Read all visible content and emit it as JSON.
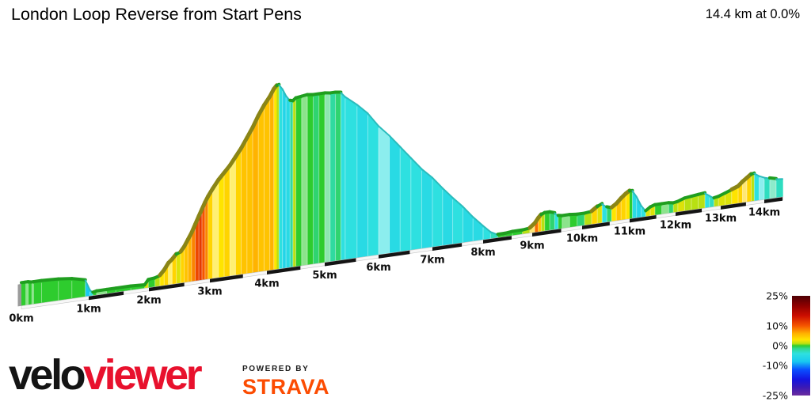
{
  "header": {
    "title": "London Loop Reverse from Start Pens",
    "summary": "14.4 km at 0.0%"
  },
  "footer": {
    "brand_velo": "velo",
    "brand_viewer": "viewer",
    "brand_viewer_color": "#e8112d",
    "powered_by": "POWERED BY",
    "strava": "STRAVA",
    "strava_color": "#fc4c02"
  },
  "chart_data": {
    "type": "area",
    "title": "London Loop Reverse from Start Pens",
    "total_distance_km": 14.4,
    "avg_gradient_pct": 0.0,
    "x_unit": "km",
    "x_ticks": [
      {
        "km": 0,
        "label": "0km"
      },
      {
        "km": 1,
        "label": "1km"
      },
      {
        "km": 2,
        "label": "2km"
      },
      {
        "km": 3,
        "label": "3km"
      },
      {
        "km": 4,
        "label": "4km"
      },
      {
        "km": 5,
        "label": "5km"
      },
      {
        "km": 6,
        "label": "6km"
      },
      {
        "km": 7,
        "label": "7km"
      },
      {
        "km": 8,
        "label": "8km"
      },
      {
        "km": 9,
        "label": "9km"
      },
      {
        "km": 10,
        "label": "10km"
      },
      {
        "km": 11,
        "label": "11km"
      },
      {
        "km": 12,
        "label": "12km"
      },
      {
        "km": 13,
        "label": "13km"
      },
      {
        "km": 14,
        "label": "14km"
      }
    ],
    "legend": {
      "min": -25,
      "max": 25,
      "tick_values": [
        25,
        10,
        0,
        -10,
        -25
      ],
      "tick_labels": [
        "25%",
        "10%",
        "0%",
        "-10%",
        "-25%"
      ]
    },
    "gradient_palette": [
      [
        25,
        "#4d0005"
      ],
      [
        20,
        "#8f0000"
      ],
      [
        15,
        "#cc0e00"
      ],
      [
        10,
        "#f55500"
      ],
      [
        6,
        "#ffb300"
      ],
      [
        3,
        "#ffe400"
      ],
      [
        1,
        "#b8e012"
      ],
      [
        0,
        "#2ecc2e"
      ],
      [
        -1.5,
        "#30d890"
      ],
      [
        -4,
        "#2ee0e0"
      ],
      [
        -8,
        "#18c8f0"
      ],
      [
        -12,
        "#0a50ff"
      ],
      [
        -17,
        "#1414e0"
      ],
      [
        -21,
        "#3c1ab4"
      ],
      [
        -25,
        "#6a2d9e"
      ]
    ],
    "profile": [
      [
        0.0,
        28,
        0,
        0
      ],
      [
        0.06,
        28,
        0,
        0
      ],
      [
        0.1,
        28,
        0,
        1
      ],
      [
        0.15,
        27,
        0,
        0
      ],
      [
        0.18,
        27,
        0,
        1
      ],
      [
        0.3,
        27,
        0,
        0
      ],
      [
        0.55,
        26,
        0,
        0
      ],
      [
        0.75,
        24,
        0,
        0
      ],
      [
        0.95,
        20,
        0,
        0
      ],
      [
        1.02,
        7,
        -8,
        0
      ],
      [
        1.07,
        3,
        -4,
        0
      ],
      [
        1.13,
        4,
        0,
        0
      ],
      [
        1.3,
        4,
        0,
        1
      ],
      [
        1.45,
        4,
        0,
        0
      ],
      [
        1.7,
        4,
        0,
        0
      ],
      [
        1.93,
        3,
        0,
        0
      ],
      [
        1.99,
        9,
        2,
        0
      ],
      [
        2.1,
        10,
        0,
        0
      ],
      [
        2.18,
        12,
        1,
        0
      ],
      [
        2.25,
        18,
        3,
        0
      ],
      [
        2.32,
        26,
        4,
        0
      ],
      [
        2.38,
        30,
        3,
        1
      ],
      [
        2.45,
        36,
        4,
        0
      ],
      [
        2.52,
        38,
        2,
        0
      ],
      [
        2.58,
        44,
        4,
        0
      ],
      [
        2.64,
        52,
        5,
        0
      ],
      [
        2.7,
        60,
        6,
        0
      ],
      [
        2.76,
        70,
        8,
        0
      ],
      [
        2.82,
        80,
        11,
        0
      ],
      [
        2.87,
        88,
        12,
        0
      ],
      [
        2.92,
        96,
        10,
        0
      ],
      [
        2.97,
        103,
        8,
        0
      ],
      [
        3.05,
        112,
        4,
        0
      ],
      [
        3.15,
        122,
        3,
        1
      ],
      [
        3.25,
        130,
        3,
        0
      ],
      [
        3.35,
        138,
        4,
        0
      ],
      [
        3.45,
        148,
        3,
        1
      ],
      [
        3.55,
        158,
        4,
        0
      ],
      [
        3.65,
        170,
        5,
        0
      ],
      [
        3.75,
        182,
        5,
        0
      ],
      [
        3.85,
        196,
        6,
        0
      ],
      [
        3.95,
        208,
        5,
        0
      ],
      [
        4.05,
        218,
        5,
        0
      ],
      [
        4.12,
        227,
        6,
        0
      ],
      [
        4.17,
        231,
        3,
        0
      ],
      [
        4.21,
        232,
        1,
        0
      ],
      [
        4.27,
        226,
        -4,
        0
      ],
      [
        4.33,
        217,
        -6,
        0
      ],
      [
        4.4,
        210,
        -5,
        0
      ],
      [
        4.45,
        209,
        -2,
        0
      ],
      [
        4.5,
        212,
        1,
        0
      ],
      [
        4.6,
        213,
        0,
        0
      ],
      [
        4.7,
        214,
        0,
        1
      ],
      [
        4.8,
        213,
        0,
        0
      ],
      [
        4.9,
        213,
        -1,
        0
      ],
      [
        5.0,
        213,
        0,
        0
      ],
      [
        5.1,
        212,
        -1,
        1
      ],
      [
        5.2,
        212,
        -2,
        0
      ],
      [
        5.3,
        211,
        -1,
        0
      ],
      [
        5.38,
        205,
        -4,
        0
      ],
      [
        5.6,
        193,
        -4,
        0
      ],
      [
        5.8,
        180,
        -5,
        0
      ],
      [
        6.0,
        162,
        -4,
        0
      ],
      [
        6.2,
        148,
        -4,
        1
      ],
      [
        6.4,
        132,
        -5,
        0
      ],
      [
        6.6,
        116,
        -4,
        0
      ],
      [
        6.8,
        100,
        -4,
        0
      ],
      [
        7.0,
        87,
        -5,
        0
      ],
      [
        7.2,
        72,
        -4,
        0
      ],
      [
        7.4,
        58,
        -5,
        0
      ],
      [
        7.6,
        45,
        -4,
        0
      ],
      [
        7.8,
        30,
        -5,
        0
      ],
      [
        8.0,
        17,
        -5,
        0
      ],
      [
        8.15,
        8,
        -4,
        0
      ],
      [
        8.3,
        3,
        -3,
        0
      ],
      [
        8.45,
        3,
        0,
        0
      ],
      [
        8.6,
        4,
        0,
        0
      ],
      [
        8.8,
        4,
        0,
        0
      ],
      [
        8.95,
        5,
        1,
        0
      ],
      [
        9.05,
        10,
        4,
        1
      ],
      [
        9.12,
        16,
        9,
        0
      ],
      [
        9.18,
        20,
        5,
        0
      ],
      [
        9.25,
        22,
        1,
        0
      ],
      [
        9.35,
        22,
        0,
        0
      ],
      [
        9.45,
        20,
        -1,
        0
      ],
      [
        9.52,
        16,
        -4,
        0
      ],
      [
        9.6,
        15,
        0,
        0
      ],
      [
        9.75,
        15,
        0,
        1
      ],
      [
        9.9,
        14,
        0,
        0
      ],
      [
        10.05,
        14,
        -1,
        0
      ],
      [
        10.2,
        15,
        1,
        0
      ],
      [
        10.32,
        20,
        4,
        0
      ],
      [
        10.42,
        23,
        2,
        0
      ],
      [
        10.52,
        18,
        -4,
        0
      ],
      [
        10.62,
        16,
        -1,
        0
      ],
      [
        10.72,
        20,
        3,
        0
      ],
      [
        10.82,
        26,
        5,
        0
      ],
      [
        10.92,
        31,
        4,
        0
      ],
      [
        11.0,
        34,
        3,
        0
      ],
      [
        11.06,
        34,
        0,
        0
      ],
      [
        11.15,
        26,
        -5,
        0
      ],
      [
        11.25,
        14,
        -6,
        0
      ],
      [
        11.35,
        6,
        -4,
        0
      ],
      [
        11.45,
        10,
        2,
        0
      ],
      [
        11.55,
        12,
        2,
        0
      ],
      [
        11.7,
        12,
        0,
        0
      ],
      [
        11.85,
        12,
        0,
        1
      ],
      [
        11.95,
        11,
        -1,
        0
      ],
      [
        12.05,
        12,
        1,
        0
      ],
      [
        12.2,
        15,
        2,
        0
      ],
      [
        12.35,
        16,
        1,
        0
      ],
      [
        12.5,
        17,
        1,
        0
      ],
      [
        12.65,
        18,
        1,
        0
      ],
      [
        12.75,
        14,
        -4,
        0
      ],
      [
        12.85,
        10,
        -3,
        0
      ],
      [
        12.95,
        11,
        1,
        0
      ],
      [
        13.1,
        14,
        2,
        0
      ],
      [
        13.25,
        17,
        2,
        0
      ],
      [
        13.4,
        20,
        3,
        0
      ],
      [
        13.5,
        25,
        4,
        0
      ],
      [
        13.6,
        29,
        4,
        1
      ],
      [
        13.7,
        33,
        4,
        0
      ],
      [
        13.77,
        34,
        1,
        0
      ],
      [
        13.88,
        30,
        -4,
        0
      ],
      [
        14.0,
        27,
        -4,
        1
      ],
      [
        14.12,
        25,
        -3,
        0
      ],
      [
        14.26,
        23,
        -2,
        1
      ],
      [
        14.4,
        22,
        -3,
        0
      ]
    ]
  }
}
